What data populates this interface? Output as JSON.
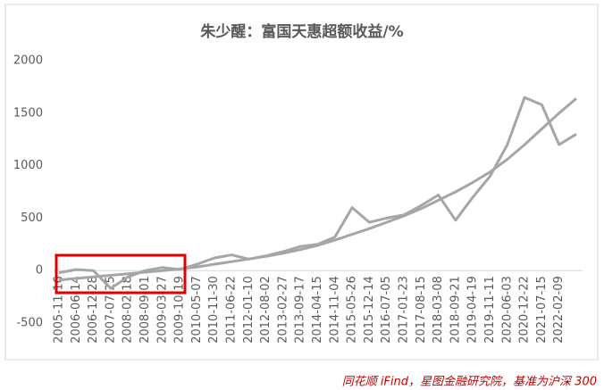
{
  "chart_data": {
    "type": "line",
    "title": "朱少醒：富国天惠超额收益/%",
    "categories": [
      "2005-11-16",
      "2006-06-14",
      "2006-12-28",
      "2007-07-25",
      "2008-02-18",
      "2008-09-01",
      "2009-03-27",
      "2009-10-19",
      "2010-05-07",
      "2010-11-30",
      "2011-06-22",
      "2012-01-10",
      "2012-08-02",
      "2013-02-27",
      "2013-09-17",
      "2014-04-15",
      "2014-11-04",
      "2015-05-26",
      "2015-12-14",
      "2016-07-05",
      "2017-01-23",
      "2017-08-15",
      "2018-03-08",
      "2018-09-21",
      "2019-04-19",
      "2019-11-11",
      "2020-06-03",
      "2020-12-22",
      "2021-07-15",
      "2022-02-09",
      null
    ],
    "series": [
      {
        "color": "#a6a6a6",
        "values": [
          -20,
          10,
          0,
          -170,
          -60,
          0,
          30,
          10,
          60,
          120,
          150,
          110,
          140,
          180,
          230,
          250,
          320,
          600,
          460,
          500,
          530,
          620,
          720,
          480,
          700,
          900,
          1200,
          1650,
          1580,
          1200,
          1300
        ]
      },
      {
        "color": "#a6a6a6",
        "values": [
          -90,
          -75,
          -60,
          -45,
          -30,
          -15,
          0,
          15,
          35,
          60,
          85,
          110,
          135,
          165,
          200,
          240,
          290,
          345,
          400,
          460,
          520,
          590,
          670,
          750,
          840,
          940,
          1060,
          1200,
          1350,
          1500,
          1640
        ]
      }
    ],
    "ylim": [
      -500,
      2000
    ],
    "yticks": [
      -500,
      0,
      500,
      1000,
      1500,
      2000
    ],
    "grid": false,
    "source": "同花顺 iFind，星图金融研究院，基准为沪深 300"
  }
}
